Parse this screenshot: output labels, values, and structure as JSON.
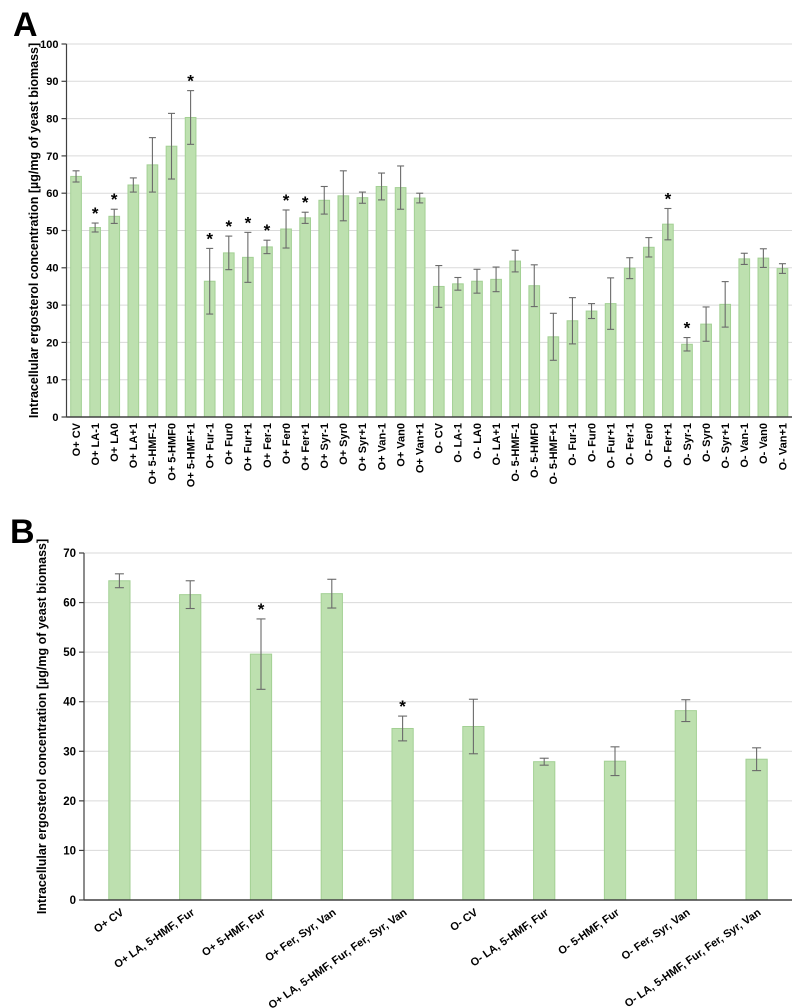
{
  "figure": {
    "background": "#ffffff",
    "panels": [
      {
        "letter": "A"
      },
      {
        "letter": "B"
      }
    ]
  },
  "chart_data": [
    {
      "type": "bar",
      "panel": "A",
      "title": "",
      "xlabel": "",
      "ylabel": "Intracellular ergosterol concentration [µg/mg of yeast biomass]",
      "ylim": [
        0,
        100
      ],
      "ytick_step": 10,
      "grid": true,
      "legend": "none",
      "significance_marker": "*",
      "bar_color": "#bde0af",
      "bar_border_color": "#a3d094",
      "error_bar_color": "#6a6a6a",
      "grid_color": "#dadada",
      "axis_color": "#404040",
      "categories": [
        "O+ CV",
        "O+ LA-1",
        "O+ LA0",
        "O+ LA+1",
        "O+ 5-HMF-1",
        "O+ 5-HMF0",
        "O+ 5-HMF+1",
        "O+ Fur-1",
        "O+ Fur0",
        "O+ Fur+1",
        "O+ Fer-1",
        "O+ Fer0",
        "O+ Fer+1",
        "O+ Syr-1",
        "O+ Syr0",
        "O+ Syr+1",
        "O+ Van-1",
        "O+ Van0",
        "O+ Van+1",
        "O- CV",
        "O- LA-1",
        "O- LA0",
        "O- LA+1",
        "O- 5-HMF-1",
        "O- 5-HMF0",
        "O- 5-HMF+1",
        "O- Fur-1",
        "O- Fur0",
        "O- Fur+1",
        "O- Fer-1",
        "O- Fer0",
        "O- Fer+1",
        "O- Syr-1",
        "O- Syr0",
        "O- Syr+1",
        "O- Van-1",
        "O- Van0",
        "O- Van+1"
      ],
      "values": [
        64.5,
        50.8,
        53.8,
        62.2,
        67.6,
        72.6,
        80.3,
        36.4,
        44.0,
        42.8,
        45.6,
        50.4,
        53.4,
        58.1,
        59.3,
        58.8,
        61.8,
        61.5,
        58.7,
        35.0,
        35.7,
        36.4,
        36.9,
        41.8,
        35.2,
        21.5,
        25.8,
        28.4,
        30.4,
        39.9,
        45.5,
        51.7,
        19.5,
        24.9,
        30.2,
        42.4,
        42.6,
        39.8
      ],
      "errors": [
        1.5,
        1.2,
        1.9,
        1.9,
        7.3,
        8.8,
        7.2,
        8.8,
        4.5,
        6.7,
        1.8,
        5.1,
        1.5,
        3.7,
        6.7,
        1.5,
        3.6,
        5.8,
        1.3,
        5.6,
        1.7,
        3.2,
        3.3,
        2.9,
        5.6,
        6.3,
        6.2,
        2.0,
        6.9,
        2.8,
        2.6,
        4.2,
        1.8,
        4.6,
        6.1,
        1.5,
        2.5,
        1.3
      ],
      "significant_indices": [
        1,
        2,
        6,
        7,
        8,
        9,
        10,
        11,
        12,
        31,
        32
      ]
    },
    {
      "type": "bar",
      "panel": "B",
      "title": "",
      "xlabel": "",
      "ylabel": "Intracellular ergosterol concentration [µg/mg of yeast biomass]",
      "ylim": [
        0,
        70
      ],
      "ytick_step": 10,
      "grid": true,
      "legend": "none",
      "significance_marker": "*",
      "bar_color": "#bde0af",
      "bar_border_color": "#a3d094",
      "error_bar_color": "#6a6a6a",
      "grid_color": "#dadada",
      "axis_color": "#404040",
      "categories": [
        "O+ CV",
        "O+ LA, 5-HMF, Fur",
        "O+ 5-HMF, Fur",
        "O+ Fer, Syr, Van",
        "O+ LA, 5-HMF, Fur, Fer, Syr, Van",
        "O- CV",
        "O- LA, 5-HMF, Fur",
        "O- 5-HMF, Fur",
        "O- Fer, Syr, Van",
        "O- LA, 5-HMF, Fur, Fer, Syr, Van"
      ],
      "values": [
        64.4,
        61.6,
        49.6,
        61.8,
        34.6,
        35.0,
        27.9,
        28.0,
        38.2,
        28.4
      ],
      "errors": [
        1.4,
        2.8,
        7.1,
        2.9,
        2.5,
        5.5,
        0.7,
        2.9,
        2.2,
        2.3
      ],
      "significant_indices": [
        2,
        4
      ]
    }
  ]
}
